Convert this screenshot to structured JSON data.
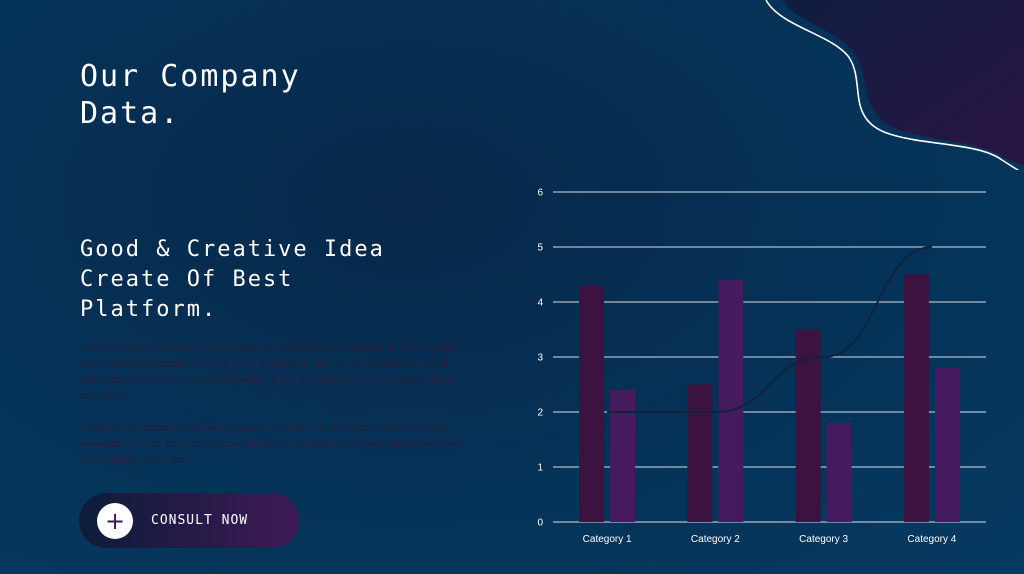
{
  "title": "Our Company Data.",
  "subtitle": "Good & Creative Idea Create Of Best Platform.",
  "paragraphs": [
    "There are many variations of passages of Lorem Ipsum available, but the majority have suffered alteration in some form, by injected humour, or randomised words which don't look even slightly believable. If you are going to use a passage There are many",
    "variations of passages of Lorem Ipsum available, but the majority have suffered alteration in some form, by injected humour, or randomised words which don't look even slightly believable."
  ],
  "cta": {
    "label": "CONSULT NOW",
    "icon": "plus-icon"
  },
  "colors": {
    "series1": "#3b1240",
    "series2": "#451a5e",
    "series3": "#0f2438",
    "grid": "#ffffff",
    "blob": "#1c1840"
  },
  "chart_data": {
    "type": "bar",
    "categories": [
      "Category 1",
      "Category 2",
      "Category 3",
      "Category 4"
    ],
    "series": [
      {
        "values": [
          4.3,
          2.5,
          3.5,
          4.5
        ],
        "type": "bar"
      },
      {
        "values": [
          2.4,
          4.4,
          1.8,
          2.8
        ],
        "type": "bar"
      },
      {
        "values": [
          2,
          2,
          3,
          5
        ],
        "type": "line"
      }
    ],
    "yticks": [
      "0",
      "1",
      "2",
      "3",
      "4",
      "5",
      "6"
    ],
    "ylim": [
      0,
      6
    ],
    "grid": true,
    "legend": "none"
  }
}
